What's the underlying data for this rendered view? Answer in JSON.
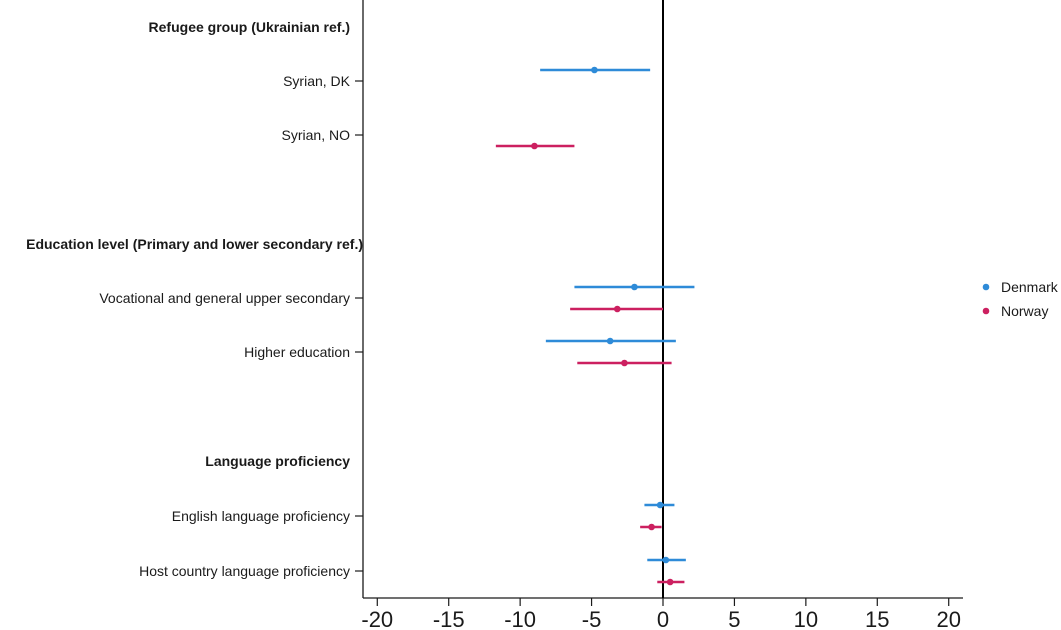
{
  "chart_data": {
    "type": "forest",
    "xlim": [
      -21,
      21
    ],
    "x_ticks": [
      -20,
      -15,
      -10,
      -5,
      0,
      5,
      10,
      15,
      20
    ],
    "x_tick_labels": [
      "-20",
      "-15",
      "-10",
      "-5",
      "0",
      "5",
      "10",
      "15",
      "20"
    ],
    "reference_line": 0,
    "legend_position": "right",
    "series": [
      {
        "name": "Denmark",
        "color": "#2e8bd8"
      },
      {
        "name": "Norway",
        "color": "#cc2060"
      }
    ],
    "rows": [
      {
        "label": "Refugee group (Ukrainian ref.)",
        "header": true
      },
      {
        "label": "Syrian, DK",
        "header": false,
        "estimates": [
          {
            "series": "Denmark",
            "estimate": -4.8,
            "lower": -8.6,
            "upper": -0.9
          }
        ]
      },
      {
        "label": "Syrian, NO",
        "header": false,
        "estimates": [
          {
            "series": "Norway",
            "estimate": -9.0,
            "lower": -11.7,
            "upper": -6.2
          }
        ]
      },
      {
        "label": "Education level (Primary and lower secondary ref.)",
        "header": true
      },
      {
        "label": "Vocational and general upper secondary",
        "header": false,
        "estimates": [
          {
            "series": "Denmark",
            "estimate": -2.0,
            "lower": -6.2,
            "upper": 2.2
          },
          {
            "series": "Norway",
            "estimate": -3.2,
            "lower": -6.5,
            "upper": 0.0
          }
        ]
      },
      {
        "label": "Higher education",
        "header": false,
        "estimates": [
          {
            "series": "Denmark",
            "estimate": -3.7,
            "lower": -8.2,
            "upper": 0.9
          },
          {
            "series": "Norway",
            "estimate": -2.7,
            "lower": -6.0,
            "upper": 0.6
          }
        ]
      },
      {
        "label": "Language proficiency",
        "header": true
      },
      {
        "label": "English language proficiency",
        "header": false,
        "estimates": [
          {
            "series": "Denmark",
            "estimate": -0.2,
            "lower": -1.3,
            "upper": 0.8
          },
          {
            "series": "Norway",
            "estimate": -0.8,
            "lower": -1.6,
            "upper": -0.1
          }
        ]
      },
      {
        "label": "Host country language proficiency",
        "header": false,
        "estimates": [
          {
            "series": "Denmark",
            "estimate": 0.2,
            "lower": -1.1,
            "upper": 1.6
          },
          {
            "series": "Norway",
            "estimate": 0.5,
            "lower": -0.4,
            "upper": 1.5
          }
        ]
      }
    ]
  }
}
